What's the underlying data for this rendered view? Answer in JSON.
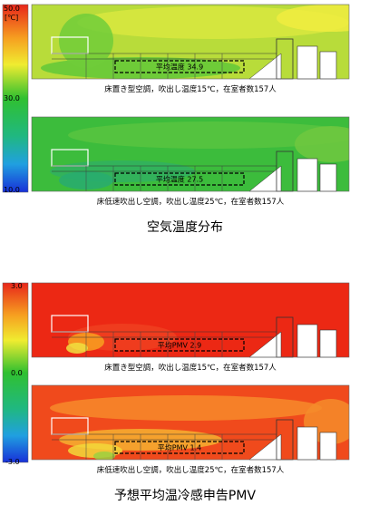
{
  "temperature_section": {
    "colorbar": {
      "unit": "[℃]",
      "ticks": [
        "50.0",
        "30.0",
        "10.0"
      ]
    },
    "panels": [
      {
        "annotation": "平均温度  34.9",
        "caption": "床置き型空調，吹出し温度15℃，在室者数157人"
      },
      {
        "annotation": "平均温度  27.5",
        "caption": "床低速吹出し空調，吹出し温度25℃，在室者数157人"
      }
    ],
    "title": "空気温度分布"
  },
  "pmv_section": {
    "colorbar": {
      "ticks": [
        "3.0",
        "0.0",
        "-3.0"
      ]
    },
    "panels": [
      {
        "annotation": "平均PMV 2.9",
        "caption": "床置き型空調，吹出し温度15℃，在室者数157人"
      },
      {
        "annotation": "平均PMV 1.4",
        "caption": "床低速吹出し空調，吹出し温度25℃，在室者数157人"
      }
    ],
    "title": "予想平均温冷感申告PMV"
  }
}
